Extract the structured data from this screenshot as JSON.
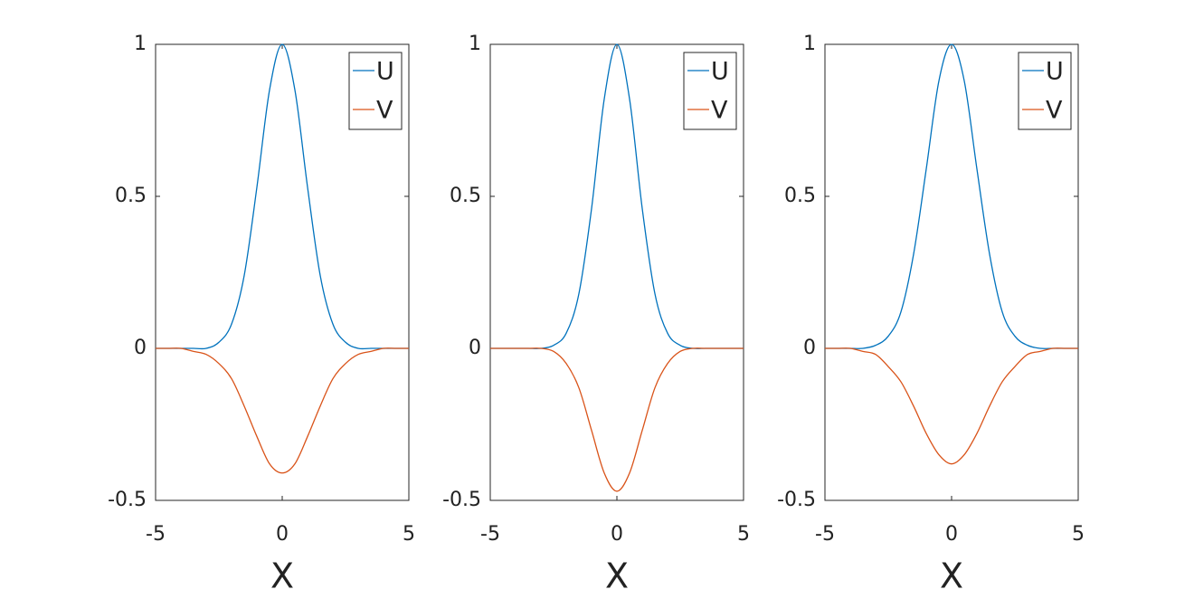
{
  "chart_data": [
    {
      "type": "line",
      "xlabel": "X",
      "xlim": [
        -5,
        5
      ],
      "ylim": [
        -0.5,
        1
      ],
      "xticks": [
        -5,
        0,
        5
      ],
      "yticks": [
        -0.5,
        0,
        0.5,
        1
      ],
      "legend": "upper right",
      "x": [
        -5,
        -4.5,
        -4,
        -3.5,
        -3,
        -2.5,
        -2,
        -1.5,
        -1,
        -0.5,
        0,
        0.5,
        1,
        1.5,
        2,
        2.5,
        3,
        3.5,
        4,
        4.5,
        5
      ],
      "series": [
        {
          "name": "U",
          "color": "#0072bd",
          "values": [
            0,
            0,
            0,
            0,
            0,
            0.02,
            0.08,
            0.24,
            0.53,
            0.85,
            1,
            0.85,
            0.53,
            0.24,
            0.08,
            0.02,
            0,
            0,
            0,
            0,
            0
          ]
        },
        {
          "name": "V",
          "color": "#d95319",
          "values": [
            0,
            0,
            0,
            -0.01,
            -0.02,
            -0.05,
            -0.1,
            -0.19,
            -0.29,
            -0.38,
            -0.41,
            -0.38,
            -0.29,
            -0.19,
            -0.1,
            -0.05,
            -0.02,
            -0.01,
            0,
            0,
            0
          ]
        }
      ]
    },
    {
      "type": "line",
      "xlabel": "X",
      "xlim": [
        -5,
        5
      ],
      "ylim": [
        -0.5,
        1
      ],
      "xticks": [
        -5,
        0,
        5
      ],
      "yticks": [
        -0.5,
        0,
        0.5,
        1
      ],
      "legend": "upper right",
      "x": [
        -5,
        -4.5,
        -4,
        -3.5,
        -3,
        -2.5,
        -2,
        -1.5,
        -1,
        -0.5,
        0,
        0.5,
        1,
        1.5,
        2,
        2.5,
        3,
        3.5,
        4,
        4.5,
        5
      ],
      "series": [
        {
          "name": "U",
          "color": "#0072bd",
          "values": [
            0,
            0,
            0,
            0,
            0,
            0.01,
            0.05,
            0.18,
            0.46,
            0.82,
            1,
            0.82,
            0.46,
            0.18,
            0.05,
            0.01,
            0,
            0,
            0,
            0,
            0
          ]
        },
        {
          "name": "V",
          "color": "#d95319",
          "values": [
            0,
            0,
            0,
            0,
            0,
            -0.01,
            -0.05,
            -0.13,
            -0.27,
            -0.41,
            -0.47,
            -0.41,
            -0.27,
            -0.13,
            -0.05,
            -0.01,
            0,
            0,
            0,
            0,
            0
          ]
        }
      ]
    },
    {
      "type": "line",
      "xlabel": "X",
      "xlim": [
        -5,
        5
      ],
      "ylim": [
        -0.5,
        1
      ],
      "xticks": [
        -5,
        0,
        5
      ],
      "yticks": [
        -0.5,
        0,
        0.5,
        1
      ],
      "legend": "upper right",
      "x": [
        -5,
        -4.5,
        -4,
        -3.5,
        -3,
        -2.5,
        -2,
        -1.5,
        -1,
        -0.5,
        0,
        0.5,
        1,
        1.5,
        2,
        2.5,
        3,
        3.5,
        4,
        4.5,
        5
      ],
      "series": [
        {
          "name": "U",
          "color": "#0072bd",
          "values": [
            0,
            0,
            0,
            0,
            0.01,
            0.04,
            0.12,
            0.31,
            0.59,
            0.88,
            1,
            0.88,
            0.59,
            0.31,
            0.12,
            0.04,
            0.01,
            0,
            0,
            0,
            0
          ]
        },
        {
          "name": "V",
          "color": "#d95319",
          "values": [
            0,
            0,
            0,
            -0.01,
            -0.02,
            -0.06,
            -0.11,
            -0.19,
            -0.28,
            -0.35,
            -0.38,
            -0.35,
            -0.28,
            -0.19,
            -0.11,
            -0.06,
            -0.02,
            -0.01,
            0,
            0,
            0
          ]
        }
      ]
    }
  ]
}
